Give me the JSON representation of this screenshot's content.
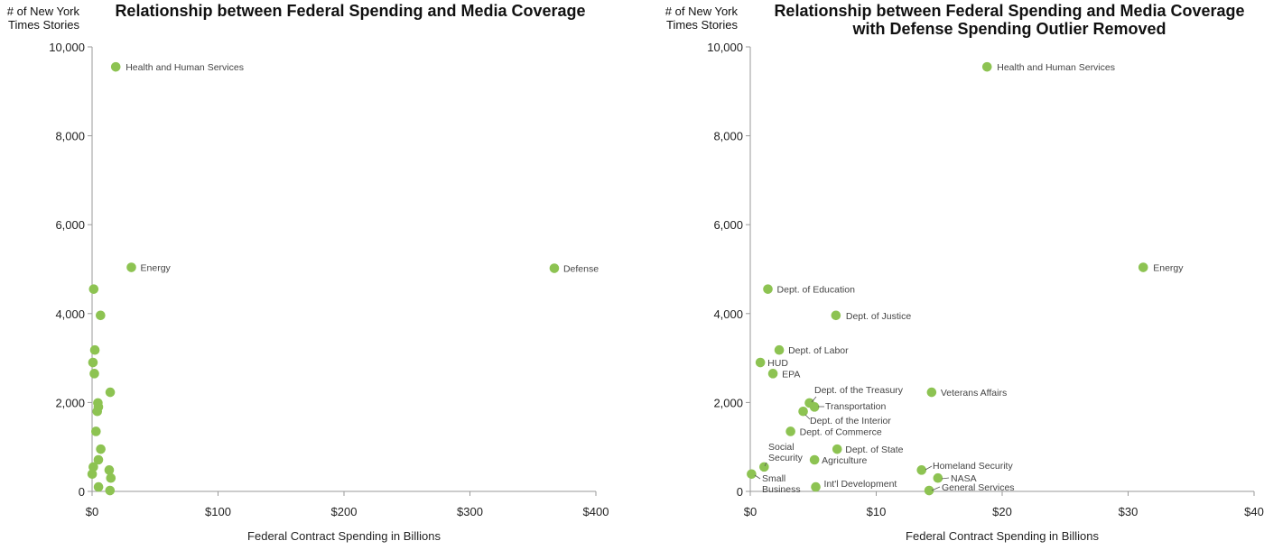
{
  "chart_data": [
    {
      "type": "scatter",
      "title": "Relationship between Federal Spending and Media Coverage",
      "subtitle": "",
      "ylabel": [
        "# of New York",
        "Times Stories"
      ],
      "xlabel": "Federal Contract Spending in Billions",
      "xlim": [
        0,
        400
      ],
      "ylim": [
        0,
        10000
      ],
      "xticks": [
        {
          "v": 0,
          "label": "$0"
        },
        {
          "v": 100,
          "label": "$100"
        },
        {
          "v": 200,
          "label": "$200"
        },
        {
          "v": 300,
          "label": "$300"
        },
        {
          "v": 400,
          "label": "$400"
        }
      ],
      "yticks": [
        {
          "v": 0,
          "label": "0"
        },
        {
          "v": 2000,
          "label": "2,000"
        },
        {
          "v": 4000,
          "label": "4,000"
        },
        {
          "v": 6000,
          "label": "6,000"
        },
        {
          "v": 8000,
          "label": "8,000"
        },
        {
          "v": 10000,
          "label": "10,000"
        }
      ],
      "grid": false,
      "marker_color": "#8dc352",
      "points": [
        {
          "x": 18.8,
          "y": 9550,
          "label": "Health and Human Services"
        },
        {
          "x": 31.2,
          "y": 5040,
          "label": "Energy"
        },
        {
          "x": 367,
          "y": 5020,
          "label": "Defense"
        },
        {
          "x": 1.3,
          "y": 4550,
          "label": ""
        },
        {
          "x": 6.7,
          "y": 3960,
          "label": ""
        },
        {
          "x": 2.2,
          "y": 3180,
          "label": ""
        },
        {
          "x": 0.7,
          "y": 2900,
          "label": ""
        },
        {
          "x": 1.8,
          "y": 2650,
          "label": ""
        },
        {
          "x": 14.4,
          "y": 2230,
          "label": ""
        },
        {
          "x": 4.6,
          "y": 1990,
          "label": ""
        },
        {
          "x": 5.0,
          "y": 1900,
          "label": ""
        },
        {
          "x": 4.1,
          "y": 1800,
          "label": ""
        },
        {
          "x": 3.1,
          "y": 1350,
          "label": ""
        },
        {
          "x": 6.9,
          "y": 950,
          "label": ""
        },
        {
          "x": 5.0,
          "y": 710,
          "label": ""
        },
        {
          "x": 1.0,
          "y": 550,
          "label": ""
        },
        {
          "x": 13.6,
          "y": 480,
          "label": ""
        },
        {
          "x": 0.1,
          "y": 390,
          "label": ""
        },
        {
          "x": 14.9,
          "y": 300,
          "label": ""
        },
        {
          "x": 5.1,
          "y": 100,
          "label": ""
        },
        {
          "x": 14.2,
          "y": 20,
          "label": ""
        }
      ]
    },
    {
      "type": "scatter",
      "title": [
        "Relationship between Federal Spending and Media Coverage",
        "with Defense Spending Outlier Removed"
      ],
      "subtitle": "",
      "ylabel": [
        "# of New York",
        "Times Stories"
      ],
      "xlabel": "Federal Contract Spending in Billions",
      "xlim": [
        0,
        40
      ],
      "ylim": [
        0,
        10000
      ],
      "xticks": [
        {
          "v": 0,
          "label": "$0"
        },
        {
          "v": 10,
          "label": "$10"
        },
        {
          "v": 20,
          "label": "$20"
        },
        {
          "v": 30,
          "label": "$30"
        },
        {
          "v": 40,
          "label": "$40"
        }
      ],
      "yticks": [
        {
          "v": 0,
          "label": "0"
        },
        {
          "v": 2000,
          "label": "2,000"
        },
        {
          "v": 4000,
          "label": "4,000"
        },
        {
          "v": 6000,
          "label": "6,000"
        },
        {
          "v": 8000,
          "label": "8,000"
        },
        {
          "v": 10000,
          "label": "10,000"
        }
      ],
      "grid": false,
      "marker_color": "#8dc352",
      "points": [
        {
          "x": 18.8,
          "y": 9550,
          "label": "Health and Human Services"
        },
        {
          "x": 31.2,
          "y": 5040,
          "label": "Energy"
        },
        {
          "x": 1.4,
          "y": 4550,
          "label": "Dept. of Education"
        },
        {
          "x": 6.8,
          "y": 3960,
          "label": "Dept. of Justice"
        },
        {
          "x": 2.3,
          "y": 3180,
          "label": "Dept. of Labor"
        },
        {
          "x": 0.8,
          "y": 2900,
          "label": "HUD"
        },
        {
          "x": 1.8,
          "y": 2650,
          "label": "EPA"
        },
        {
          "x": 14.4,
          "y": 2230,
          "label": "Veterans Affairs"
        },
        {
          "x": 4.7,
          "y": 1990,
          "label": "Dept. of the Treasury"
        },
        {
          "x": 5.1,
          "y": 1900,
          "label": "Transportation"
        },
        {
          "x": 4.2,
          "y": 1800,
          "label": "Dept. of the Interior"
        },
        {
          "x": 3.2,
          "y": 1350,
          "label": "Dept. of Commerce"
        },
        {
          "x": 6.9,
          "y": 950,
          "label": "Dept. of State"
        },
        {
          "x": 5.1,
          "y": 710,
          "label": "Agriculture"
        },
        {
          "x": 1.1,
          "y": 550,
          "label": "Social Security"
        },
        {
          "x": 13.6,
          "y": 480,
          "label": "Homeland Security"
        },
        {
          "x": 0.1,
          "y": 390,
          "label": "Small Business"
        },
        {
          "x": 14.9,
          "y": 300,
          "label": "NASA"
        },
        {
          "x": 5.2,
          "y": 100,
          "label": "Int'l Development"
        },
        {
          "x": 14.2,
          "y": 20,
          "label": "General Services"
        }
      ]
    }
  ]
}
